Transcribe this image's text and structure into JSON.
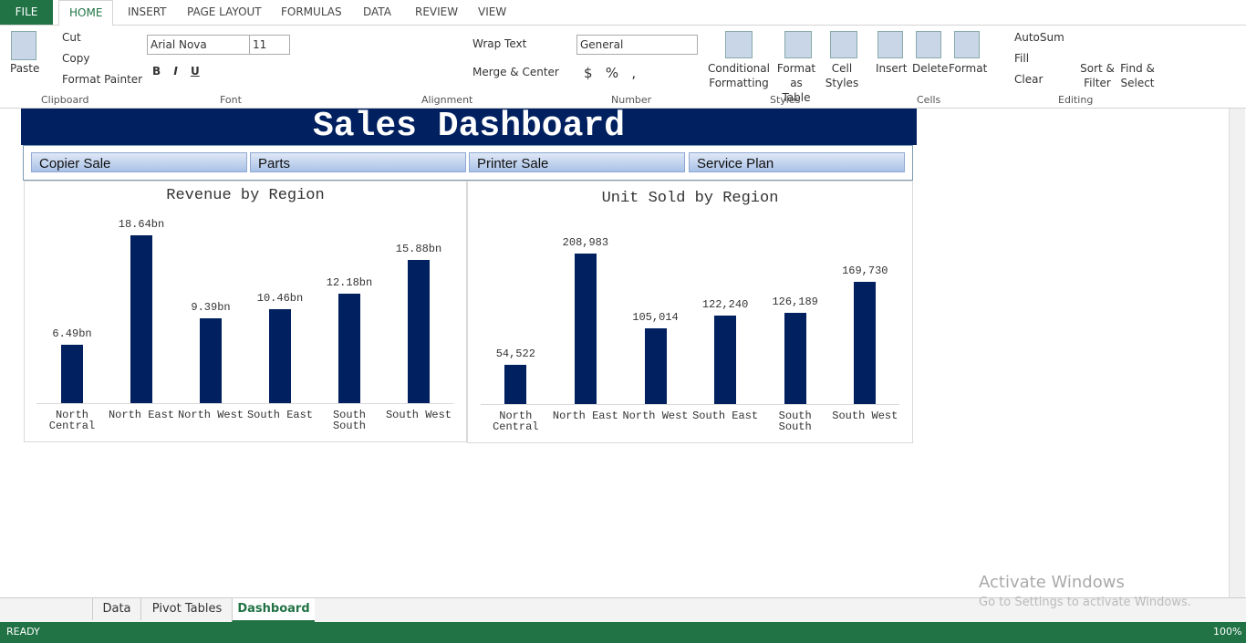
{
  "ribbon": {
    "file": "FILE",
    "tabs": [
      "HOME",
      "INSERT",
      "PAGE LAYOUT",
      "FORMULAS",
      "DATA",
      "REVIEW",
      "VIEW"
    ],
    "clipboard": {
      "paste": "Paste",
      "cut": "Cut",
      "copy": "Copy",
      "format_painter": "Format Painter",
      "label": "Clipboard"
    },
    "font": {
      "name": "Arial Nova",
      "size": "11",
      "label": "Font"
    },
    "alignment": {
      "wrap": "Wrap Text",
      "merge": "Merge & Center",
      "label": "Alignment"
    },
    "number": {
      "format": "General",
      "label": "Number"
    },
    "styles": {
      "conditional": "Conditional\nFormatting",
      "table": "Format as\nTable",
      "cell": "Cell\nStyles",
      "label": "Styles"
    },
    "cells": {
      "insert": "Insert",
      "delete": "Delete",
      "format": "Format",
      "label": "Cells"
    },
    "editing": {
      "autosum": "AutoSum",
      "fill": "Fill",
      "clear": "Clear",
      "sort": "Sort &\nFilter",
      "find": "Find &\nSelect",
      "label": "Editing"
    }
  },
  "dashboard": {
    "title": "Sales Dashboard",
    "slicers": [
      "Copier Sale",
      "Parts",
      "Printer Sale",
      "Service Plan"
    ]
  },
  "chart_data": [
    {
      "type": "bar",
      "title": "Revenue by Region",
      "categories": [
        "North Central",
        "North East",
        "North West",
        "South East",
        "South South",
        "South West"
      ],
      "values": [
        6.49,
        18.64,
        9.39,
        10.46,
        12.18,
        15.88
      ],
      "value_labels": [
        "6.49bn",
        "18.64bn",
        "9.39bn",
        "10.46bn",
        "12.18bn",
        "15.88bn"
      ],
      "color": "#002060"
    },
    {
      "type": "bar",
      "title": "Unit Sold by Region",
      "categories": [
        "North Central",
        "North East",
        "North West",
        "South East",
        "South South",
        "South West"
      ],
      "values": [
        54522,
        208983,
        105014,
        122240,
        126189,
        169730
      ],
      "value_labels": [
        "54,522",
        "208,983",
        "105,014",
        "122,240",
        "126,189",
        "169,730"
      ],
      "color": "#002060"
    }
  ],
  "sheets": [
    "Data",
    "Pivot Tables",
    "Dashboard"
  ],
  "status": {
    "ready": "READY",
    "zoom": "100%"
  },
  "watermark": {
    "line1": "Activate Windows",
    "line2": "Go to Settings to activate Windows."
  }
}
